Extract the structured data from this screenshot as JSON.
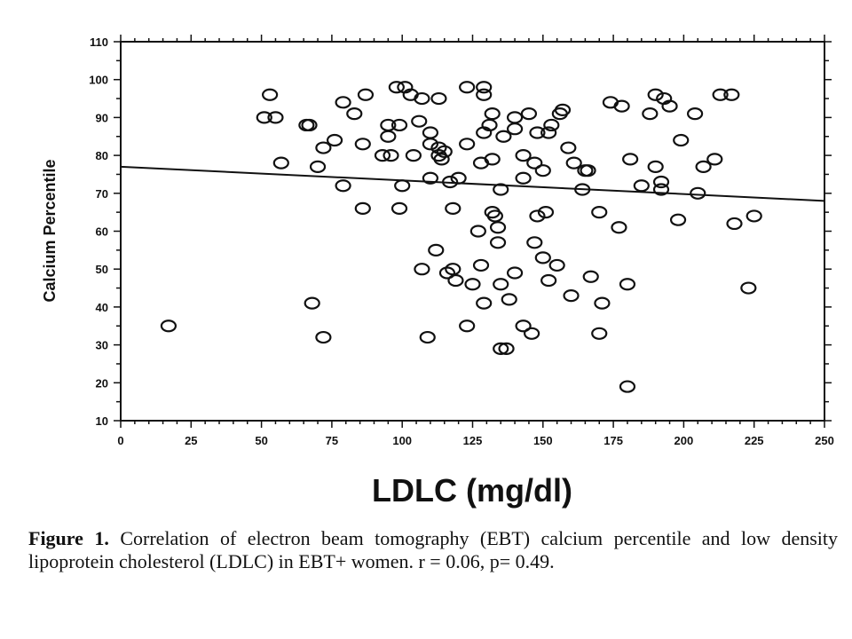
{
  "chart_data": {
    "type": "scatter",
    "xlabel": "LDLC (mg/dl)",
    "ylabel": "Calcium Percentile",
    "xlim": [
      0,
      250
    ],
    "ylim": [
      10,
      110
    ],
    "xticks": [
      "0",
      "25",
      "50",
      "75",
      "100",
      "125",
      "150",
      "175",
      "200",
      "225",
      "250"
    ],
    "yticks": [
      "10",
      "20",
      "30",
      "40",
      "50",
      "60",
      "70",
      "80",
      "90",
      "100",
      "110"
    ],
    "grid": false,
    "regression_line": {
      "x": [
        0,
        250
      ],
      "y": [
        77,
        68
      ]
    },
    "points": [
      [
        17,
        35
      ],
      [
        51,
        90
      ],
      [
        53,
        96
      ],
      [
        55,
        90
      ],
      [
        57,
        78
      ],
      [
        66,
        88
      ],
      [
        67,
        88
      ],
      [
        68,
        41
      ],
      [
        70,
        77
      ],
      [
        72,
        82
      ],
      [
        72,
        32
      ],
      [
        76,
        84
      ],
      [
        79,
        72
      ],
      [
        79,
        94
      ],
      [
        83,
        91
      ],
      [
        86,
        83
      ],
      [
        86,
        66
      ],
      [
        87,
        96
      ],
      [
        93,
        80
      ],
      [
        95,
        88
      ],
      [
        95,
        85
      ],
      [
        96,
        80
      ],
      [
        98,
        98
      ],
      [
        99,
        88
      ],
      [
        99,
        66
      ],
      [
        100,
        72
      ],
      [
        101,
        98
      ],
      [
        103,
        96
      ],
      [
        104,
        80
      ],
      [
        106,
        89
      ],
      [
        107,
        95
      ],
      [
        107,
        50
      ],
      [
        109,
        32
      ],
      [
        110,
        86
      ],
      [
        110,
        83
      ],
      [
        110,
        74
      ],
      [
        112,
        55
      ],
      [
        113,
        95
      ],
      [
        113,
        82
      ],
      [
        113,
        80
      ],
      [
        114,
        79
      ],
      [
        115,
        81
      ],
      [
        116,
        49
      ],
      [
        117,
        73
      ],
      [
        118,
        66
      ],
      [
        118,
        50
      ],
      [
        119,
        47
      ],
      [
        120,
        74
      ],
      [
        123,
        98
      ],
      [
        123,
        83
      ],
      [
        123,
        35
      ],
      [
        125,
        46
      ],
      [
        127,
        60
      ],
      [
        128,
        78
      ],
      [
        128,
        51
      ],
      [
        129,
        86
      ],
      [
        129,
        98
      ],
      [
        129,
        96
      ],
      [
        129,
        41
      ],
      [
        131,
        88
      ],
      [
        132,
        91
      ],
      [
        132,
        79
      ],
      [
        132,
        65
      ],
      [
        133,
        64
      ],
      [
        134,
        61
      ],
      [
        134,
        57
      ],
      [
        135,
        71
      ],
      [
        135,
        46
      ],
      [
        135,
        29
      ],
      [
        136,
        85
      ],
      [
        137,
        29
      ],
      [
        138,
        42
      ],
      [
        140,
        90
      ],
      [
        140,
        87
      ],
      [
        140,
        49
      ],
      [
        143,
        80
      ],
      [
        143,
        74
      ],
      [
        143,
        35
      ],
      [
        145,
        91
      ],
      [
        146,
        33
      ],
      [
        147,
        78
      ],
      [
        147,
        57
      ],
      [
        148,
        86
      ],
      [
        148,
        64
      ],
      [
        150,
        76
      ],
      [
        150,
        53
      ],
      [
        151,
        65
      ],
      [
        152,
        86
      ],
      [
        152,
        47
      ],
      [
        153,
        88
      ],
      [
        155,
        51
      ],
      [
        156,
        91
      ],
      [
        157,
        92
      ],
      [
        159,
        82
      ],
      [
        160,
        43
      ],
      [
        161,
        78
      ],
      [
        164,
        71
      ],
      [
        165,
        76
      ],
      [
        166,
        76
      ],
      [
        167,
        48
      ],
      [
        170,
        65
      ],
      [
        170,
        33
      ],
      [
        171,
        41
      ],
      [
        174,
        94
      ],
      [
        177,
        61
      ],
      [
        178,
        93
      ],
      [
        180,
        46
      ],
      [
        180,
        19
      ],
      [
        181,
        79
      ],
      [
        185,
        72
      ],
      [
        188,
        91
      ],
      [
        190,
        96
      ],
      [
        190,
        77
      ],
      [
        192,
        73
      ],
      [
        192,
        71
      ],
      [
        193,
        95
      ],
      [
        195,
        93
      ],
      [
        198,
        63
      ],
      [
        199,
        84
      ],
      [
        204,
        91
      ],
      [
        205,
        70
      ],
      [
        207,
        77
      ],
      [
        211,
        79
      ],
      [
        213,
        96
      ],
      [
        217,
        96
      ],
      [
        218,
        62
      ],
      [
        223,
        45
      ],
      [
        225,
        64
      ]
    ]
  },
  "caption": {
    "label": "Figure 1.",
    "text": "Correlation of electron beam tomography (EBT) calcium percentile and low density lipoprotein cholesterol (LDLC) in EBT+ women. r = 0.06, p= 0.49."
  }
}
